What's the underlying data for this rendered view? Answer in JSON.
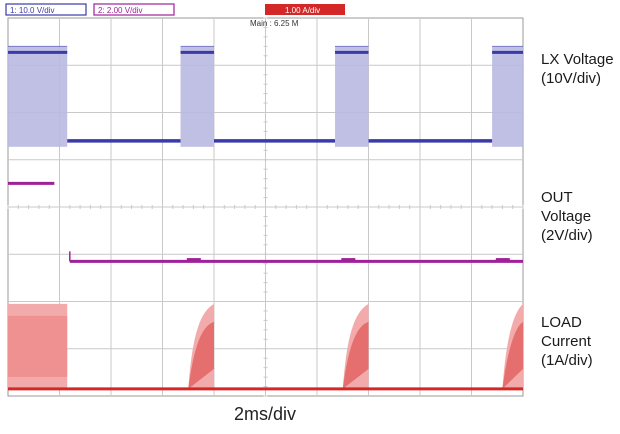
{
  "header": {
    "ch1_readout": "1: 10.0 V/div",
    "ch2_readout": "2: 2.00 V/div",
    "trigger_readout": "1.00 A/div",
    "main_timebase": "Main : 6.25 M"
  },
  "labels": {
    "lx": "LX Voltage (10V/div)",
    "out": "OUT Voltage (2V/div)",
    "load": "LOAD Current (1A/div)",
    "timebase": "2ms/div"
  },
  "colors": {
    "lx": "#3a3aa8",
    "lx_fill": "#b9b9e2",
    "out": "#a0209a",
    "load": "#d42828",
    "load_fill": "#f3aaaa",
    "grid": "#c9c9c9",
    "background": "#ffffff"
  },
  "chart_data": {
    "type": "line",
    "x_divisions": 10,
    "y_divisions": 8,
    "x_unit": "ms",
    "x_scale_per_div": 2,
    "grid": true,
    "series": [
      {
        "name": "LX Voltage",
        "scale": "10V/div",
        "baseline_div": 5.4,
        "high_div": 7.4,
        "bursts": [
          [
            0,
            1.15
          ],
          [
            3.35,
            4.0
          ],
          [
            6.35,
            7.0
          ],
          [
            9.4,
            10.0
          ]
        ]
      },
      {
        "name": "OUT Voltage",
        "scale": "2V/div",
        "start_level_div": 4.5,
        "settled_level_div": 2.85,
        "step_time_div": 1.2,
        "bump_times_div": [
          3.55,
          6.55,
          9.55
        ]
      },
      {
        "name": "LOAD Current",
        "scale": "1A/div",
        "zero_div": 0.15,
        "high_div": 1.95,
        "pulses": [
          [
            0,
            1.15
          ],
          [
            3.5,
            4.0
          ],
          [
            6.5,
            7.0
          ],
          [
            9.6,
            10.0
          ]
        ]
      }
    ]
  }
}
